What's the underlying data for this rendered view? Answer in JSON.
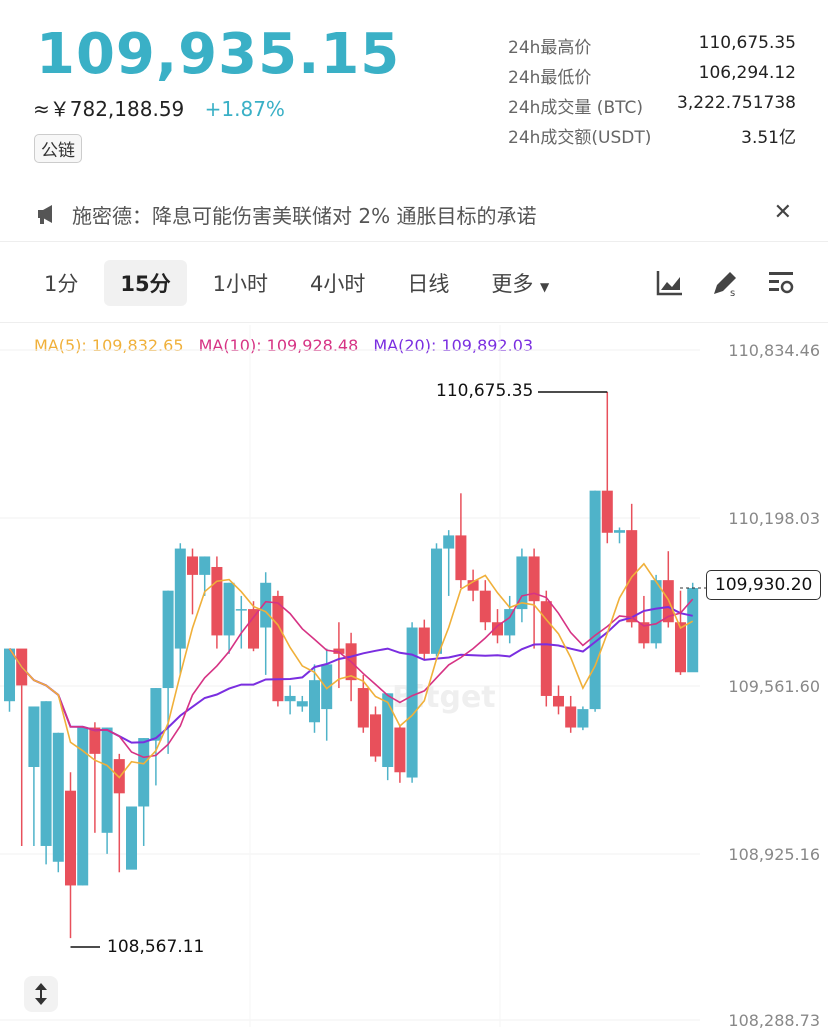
{
  "header": {
    "price": "109,935.15",
    "cny_value": "≈￥782,188.59",
    "change_pct": "+1.87%",
    "chain_tag": "公链"
  },
  "stats": [
    {
      "label": "24h最高价",
      "value": "110,675.35"
    },
    {
      "label": "24h最低价",
      "value": "106,294.12"
    },
    {
      "label": "24h成交量 (BTC)",
      "value": "3,222.751738"
    },
    {
      "label": "24h成交额(USDT)",
      "value": "3.51亿"
    }
  ],
  "notice": {
    "text": "施密德：降息可能伤害美联储对 2% 通胀目标的承诺",
    "icon": "megaphone-icon",
    "close_icon": "close-icon"
  },
  "timeframes": {
    "items": [
      "1分",
      "15分",
      "1小时",
      "4小时",
      "日线",
      "更多"
    ],
    "active": "15分"
  },
  "toolbar_icons": [
    "chart-type-icon",
    "draw-tool-icon",
    "indicator-settings-icon"
  ],
  "indicators": {
    "ma5": "MA(5): 109,832.65",
    "ma10": "MA(10): 109,928.48",
    "ma20": "MA(20): 109,892.03"
  },
  "y_axis": [
    "110,834.46",
    "110,198.03",
    "109,561.60",
    "108,925.16",
    "108,288.73"
  ],
  "chart_labels": {
    "high": "110,675.35",
    "low": "108,567.11",
    "current_price": "109,930.20",
    "watermark": "Bitget"
  },
  "colors": {
    "up": "#4fb3c9",
    "down": "#e8505b",
    "ma5": "#f0b03a",
    "ma10": "#d63384",
    "ma20": "#7a2ee0",
    "accent": "#3ab0c6"
  },
  "chart_data": {
    "type": "candlestick",
    "y_range": [
      108288.73,
      110834.46
    ],
    "candles": [
      [
        109500,
        109700,
        109560,
        109460
      ],
      [
        109700,
        109560,
        109560,
        108950
      ],
      [
        109250,
        109480,
        109480,
        108950
      ],
      [
        108950,
        109500,
        109500,
        108880
      ],
      [
        108890,
        109380,
        109380,
        108850
      ],
      [
        109160,
        108800,
        109230,
        108600
      ],
      [
        108800,
        109400,
        109400,
        108800
      ],
      [
        109400,
        109300,
        109420,
        109000
      ],
      [
        109000,
        109400,
        109400,
        108920
      ],
      [
        109280,
        109150,
        109300,
        108850
      ],
      [
        108860,
        109100,
        109100,
        108950
      ],
      [
        109100,
        109360,
        109360,
        108950
      ],
      [
        109350,
        109550,
        109550,
        109180
      ],
      [
        109550,
        109920,
        109920,
        109300
      ],
      [
        109700,
        110080,
        110100,
        109600
      ],
      [
        110050,
        109980,
        110080,
        109830
      ],
      [
        109980,
        110050,
        110050,
        109900
      ],
      [
        110010,
        109750,
        110050,
        109700
      ],
      [
        109750,
        109950,
        109950,
        109680
      ],
      [
        109850,
        109850,
        109900,
        109700
      ],
      [
        109850,
        109700,
        109880,
        109690
      ],
      [
        109780,
        109950,
        109990,
        109600
      ],
      [
        109900,
        109500,
        109920,
        109480
      ],
      [
        109500,
        109520,
        109560,
        109450
      ],
      [
        109480,
        109500,
        109520,
        109460
      ],
      [
        109420,
        109580,
        109640,
        109380
      ],
      [
        109470,
        109640,
        109700,
        109350
      ],
      [
        109700,
        109680,
        109800,
        109550
      ],
      [
        109720,
        109580,
        109760,
        109500
      ],
      [
        109550,
        109400,
        109600,
        109380
      ],
      [
        109450,
        109290,
        109480,
        109270
      ],
      [
        109250,
        109530,
        109530,
        109200
      ],
      [
        109400,
        109230,
        109410,
        109190
      ],
      [
        109210,
        109780,
        109800,
        109190
      ],
      [
        109780,
        109680,
        109810,
        109660
      ],
      [
        109680,
        110080,
        110100,
        109670
      ],
      [
        110080,
        110130,
        110150,
        109900
      ],
      [
        110130,
        109960,
        110290,
        109930
      ],
      [
        109960,
        109920,
        110000,
        109880
      ],
      [
        109920,
        109800,
        109960,
        109770
      ],
      [
        109800,
        109750,
        109850,
        109720
      ],
      [
        109750,
        109850,
        109900,
        109720
      ],
      [
        109850,
        110050,
        110080,
        109800
      ],
      [
        110050,
        109880,
        110080,
        109700
      ],
      [
        109880,
        109520,
        109920,
        109480
      ],
      [
        109520,
        109480,
        109560,
        109450
      ],
      [
        109480,
        109400,
        109520,
        109380
      ],
      [
        109400,
        109470,
        109480,
        109390
      ],
      [
        109470,
        110300,
        110300,
        109460
      ],
      [
        110300,
        110140,
        110675,
        110100
      ],
      [
        110140,
        110150,
        110160,
        110100
      ],
      [
        110150,
        109800,
        110250,
        109780
      ],
      [
        109800,
        109720,
        109900,
        109700
      ],
      [
        109720,
        109960,
        109980,
        109700
      ],
      [
        109960,
        109800,
        110070,
        109780
      ],
      [
        109800,
        109610,
        109920,
        109600
      ],
      [
        109610,
        109930,
        109950,
        109620
      ]
    ]
  }
}
